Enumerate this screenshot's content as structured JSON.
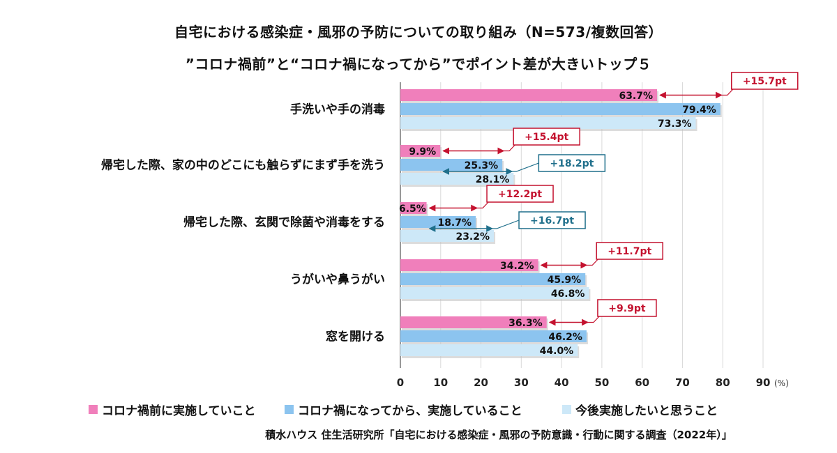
{
  "title": "自宅における感染症・風邪の予防についての取り組み（N=573/複数回答）",
  "subtitle": "”コロナ禍前”と“コロナ禍になってから”でポイント差が大きいトップ５",
  "source": "積水ハウス 住生活研究所「自宅における感染症・風邪の予防意識・行動に関する調査（2022年）」",
  "axis_unit": "(%)",
  "colors": {
    "series_1": "#f07fbb",
    "series_2": "#8cc4ef",
    "series_3": "#cde8f8",
    "callout_red": "#c4122f",
    "callout_teal": "#1f6f8b"
  },
  "chart_data": {
    "type": "bar",
    "orientation": "horizontal",
    "categories": [
      "手洗いや手の消毒",
      "帰宅した際、家の中のどこにも触らずにまず手を洗う",
      "帰宅した際、玄関で除菌や消毒をする",
      "うがいや鼻うがい",
      "窓を開ける"
    ],
    "series": [
      {
        "name": "コロナ禍前に実施していこと",
        "values": [
          63.7,
          9.9,
          6.5,
          34.2,
          36.3
        ],
        "labels": [
          "63.7%",
          "9.9%",
          "6.5%",
          "34.2%",
          "36.3%"
        ]
      },
      {
        "name": "コロナ禍になってから、実施していること",
        "values": [
          79.4,
          25.3,
          18.7,
          45.9,
          46.2
        ],
        "labels": [
          "79.4%",
          "25.3%",
          "18.7%",
          "45.9%",
          "46.2%"
        ]
      },
      {
        "name": "今後実施したいと思うこと",
        "values": [
          73.3,
          28.1,
          23.2,
          46.8,
          44.0
        ],
        "labels": [
          "73.3%",
          "28.1%",
          "23.2%",
          "46.8%",
          "44.0%"
        ]
      }
    ],
    "xlim": [
      0,
      90
    ],
    "xticks": [
      "0",
      "10",
      "20",
      "30",
      "40",
      "50",
      "60",
      "70",
      "80",
      "90"
    ],
    "grid": true,
    "legend": "bottom",
    "annotations": [
      {
        "category": 0,
        "from_series": 0,
        "to_series": 1,
        "text": "+15.7pt",
        "style": "red"
      },
      {
        "category": 1,
        "from_series": 0,
        "to_series": 1,
        "text": "+15.4pt",
        "style": "red"
      },
      {
        "category": 1,
        "from_series": 0,
        "to_series": 2,
        "text": "+18.2pt",
        "style": "teal"
      },
      {
        "category": 2,
        "from_series": 0,
        "to_series": 1,
        "text": "+12.2pt",
        "style": "red"
      },
      {
        "category": 2,
        "from_series": 0,
        "to_series": 2,
        "text": "+16.7pt",
        "style": "teal"
      },
      {
        "category": 3,
        "from_series": 0,
        "to_series": 1,
        "text": "+11.7pt",
        "style": "red"
      },
      {
        "category": 4,
        "from_series": 0,
        "to_series": 1,
        "text": "+9.9pt",
        "style": "red"
      }
    ]
  }
}
